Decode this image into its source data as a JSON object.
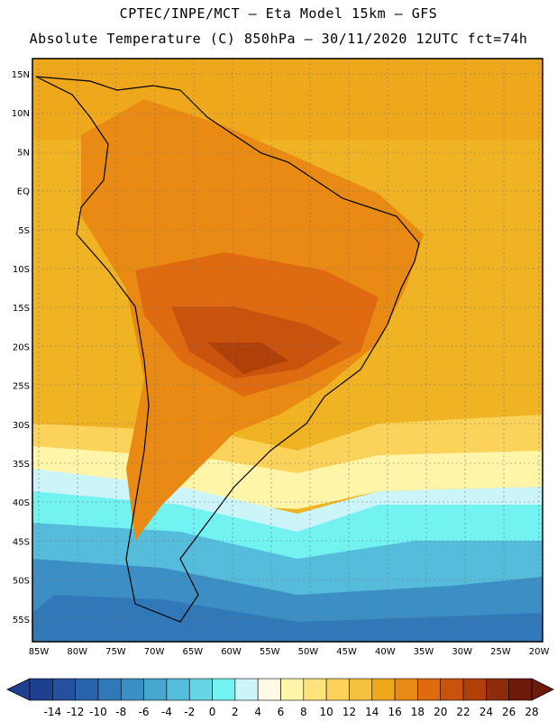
{
  "header": {
    "line1": "CPTEC/INPE/MCT –  Eta Model 15km – GFS",
    "line2": "Absolute Temperature (C) 850hPa – 30/11/2020 12UTC fct=74h"
  },
  "axes": {
    "lat_labels": [
      "15N",
      "10N",
      "5N",
      "EQ",
      "5S",
      "10S",
      "15S",
      "20S",
      "25S",
      "30S",
      "35S",
      "40S",
      "45S",
      "50S",
      "55S"
    ],
    "lon_labels": [
      "85W",
      "80W",
      "75W",
      "70W",
      "65W",
      "60W",
      "55W",
      "50W",
      "45W",
      "40W",
      "35W",
      "30W",
      "25W",
      "20W"
    ]
  },
  "colorbar": {
    "ticks": [
      "-14",
      "-12",
      "-10",
      "-8",
      "-6",
      "-4",
      "-2",
      "0",
      "2",
      "4",
      "6",
      "8",
      "10",
      "12",
      "14",
      "16",
      "18",
      "20",
      "22",
      "24",
      "26",
      "28"
    ],
    "colors": [
      "#1f3f8f",
      "#24509e",
      "#2a63ad",
      "#3178b8",
      "#3b8fc4",
      "#47a6cf",
      "#55bddb",
      "#66d6e6",
      "#73f2f2",
      "#ccf5fa",
      "#fffae6",
      "#fff5a8",
      "#fde37a",
      "#fbd35a",
      "#f5c03d",
      "#efa81c",
      "#e88a14",
      "#df6a0f",
      "#c9530c",
      "#b0400a",
      "#8c2c0a",
      "#6e1a0a"
    ]
  },
  "legend_colors": {
    "ocean_warm": "#f0b324",
    "land_hot": "#c9530c",
    "cool_sea": "#66d6e6",
    "cold_sea": "#3178b8"
  }
}
